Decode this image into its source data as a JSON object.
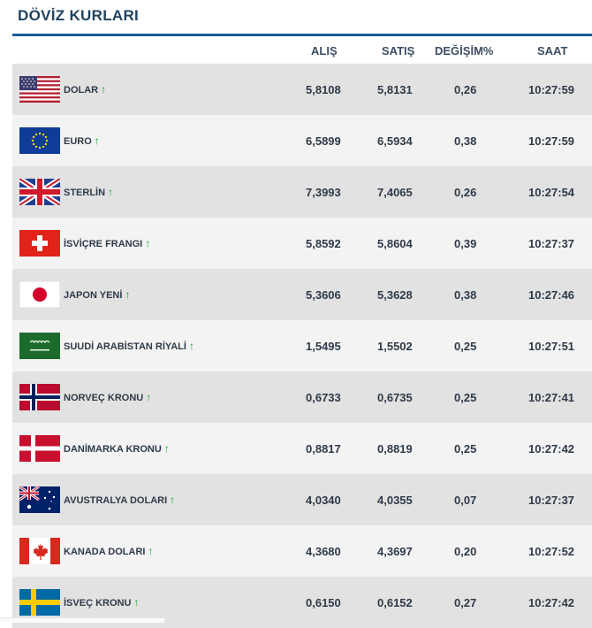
{
  "title": "DÖVİZ KURLARI",
  "columns": {
    "alis": "ALIŞ",
    "satis": "SATIŞ",
    "degisim": "DEĞİŞİM%",
    "saat": "SAAT"
  },
  "colors": {
    "title": "#20435f",
    "accent_line": "#1b5c98",
    "up_arrow": "#1aa233",
    "row_dark": "#e2e2e2",
    "row_light": "#f3f3f3"
  },
  "rows": [
    {
      "flag": "usa-flag-icon",
      "name": "DOLAR",
      "trend": "up",
      "alis": "5,8108",
      "satis": "5,8131",
      "degisim": "0,26",
      "saat": "10:27:59"
    },
    {
      "flag": "eu-flag-icon",
      "name": "EURO",
      "trend": "up",
      "alis": "6,5899",
      "satis": "6,5934",
      "degisim": "0,38",
      "saat": "10:27:59"
    },
    {
      "flag": "uk-flag-icon",
      "name": "STERLİN",
      "trend": "up",
      "alis": "7,3993",
      "satis": "7,4065",
      "degisim": "0,26",
      "saat": "10:27:54"
    },
    {
      "flag": "swiss-flag-icon",
      "name": "İSVİÇRE FRANGI",
      "trend": "up",
      "alis": "5,8592",
      "satis": "5,8604",
      "degisim": "0,39",
      "saat": "10:27:37"
    },
    {
      "flag": "japan-flag-icon",
      "name": "JAPON YENİ",
      "trend": "up",
      "alis": "5,3606",
      "satis": "5,3628",
      "degisim": "0,38",
      "saat": "10:27:46"
    },
    {
      "flag": "saudi-flag-icon",
      "name": "SUUDİ ARABİSTAN RİYALİ",
      "trend": "up",
      "alis": "1,5495",
      "satis": "1,5502",
      "degisim": "0,25",
      "saat": "10:27:51"
    },
    {
      "flag": "norway-flag-icon",
      "name": "NORVEÇ KRONU",
      "trend": "up",
      "alis": "0,6733",
      "satis": "0,6735",
      "degisim": "0,25",
      "saat": "10:27:41"
    },
    {
      "flag": "denmark-flag-icon",
      "name": "DANİMARKA KRONU",
      "trend": "up",
      "alis": "0,8817",
      "satis": "0,8819",
      "degisim": "0,25",
      "saat": "10:27:42"
    },
    {
      "flag": "australia-flag-icon",
      "name": "AVUSTRALYA DOLARI",
      "trend": "up",
      "alis": "4,0340",
      "satis": "4,0355",
      "degisim": "0,07",
      "saat": "10:27:37"
    },
    {
      "flag": "canada-flag-icon",
      "name": "KANADA DOLARI",
      "trend": "up",
      "alis": "4,3680",
      "satis": "4,3697",
      "degisim": "0,20",
      "saat": "10:27:52"
    },
    {
      "flag": "sweden-flag-icon",
      "name": "İSVEÇ KRONU",
      "trend": "up",
      "alis": "0,6150",
      "satis": "0,6152",
      "degisim": "0,27",
      "saat": "10:27:42"
    }
  ]
}
